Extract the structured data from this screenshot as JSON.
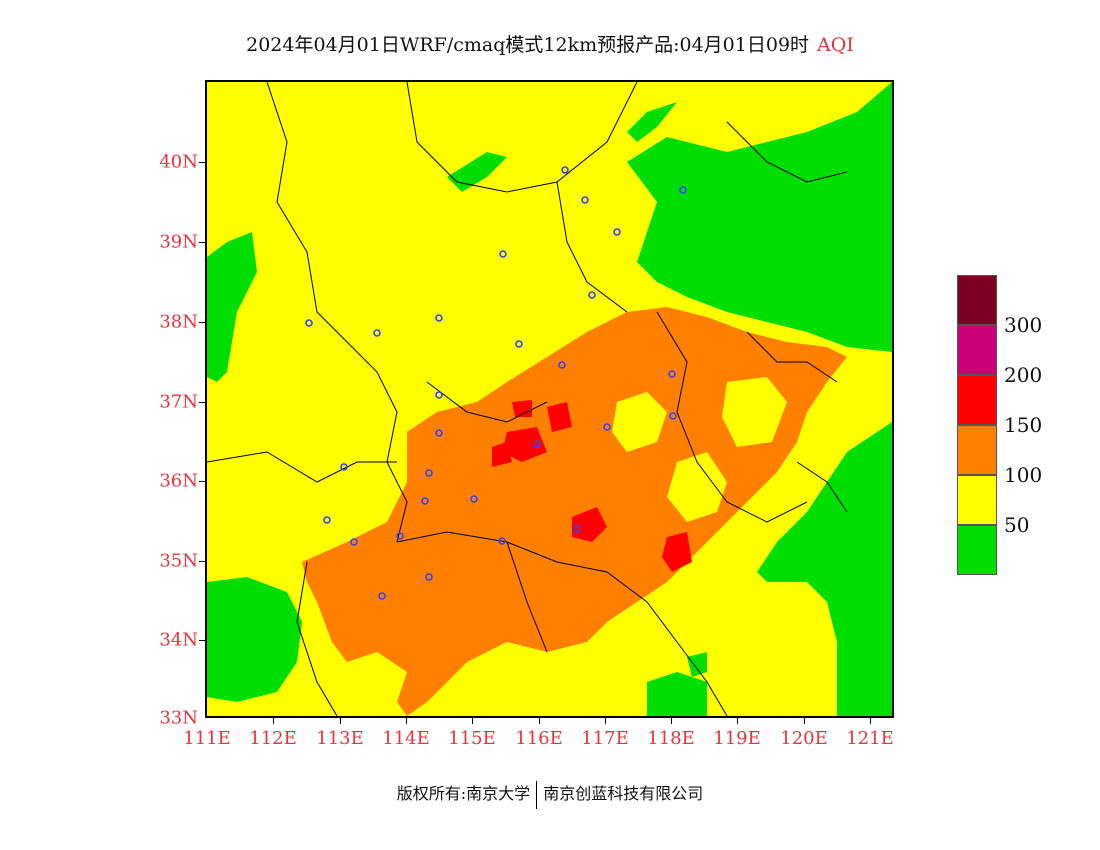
{
  "title": {
    "text": "2024年04月01日WRF/cmaq模式12km预报产品:04月01日09时",
    "product": "AQI"
  },
  "map": {
    "lat_labels": [
      "40N",
      "39N",
      "38N",
      "37N",
      "36N",
      "35N",
      "34N",
      "33N"
    ],
    "lon_labels": [
      "111E",
      "112E",
      "113E",
      "114E",
      "115E",
      "116E",
      "117E",
      "118E",
      "119E",
      "120E",
      "121E"
    ],
    "lat_values": [
      40,
      39,
      38,
      37,
      36,
      35,
      34,
      33
    ],
    "lon_values": [
      111,
      112,
      113,
      114,
      115,
      116,
      117,
      118,
      119,
      120,
      121
    ],
    "lat_range": [
      33,
      40.98
    ],
    "lon_range": [
      111,
      121.4
    ],
    "background_color": "#ffff00"
  },
  "legend": {
    "colors": [
      "#7b0024",
      "#cc0077",
      "#ff0000",
      "#ff8000",
      "#ffff00",
      "#00dd00"
    ],
    "labels": [
      "300",
      "200",
      "150",
      "100",
      "50"
    ]
  },
  "footer": {
    "copyright": "版权所有:南京大学",
    "company": "南京创蓝科技有限公司"
  }
}
